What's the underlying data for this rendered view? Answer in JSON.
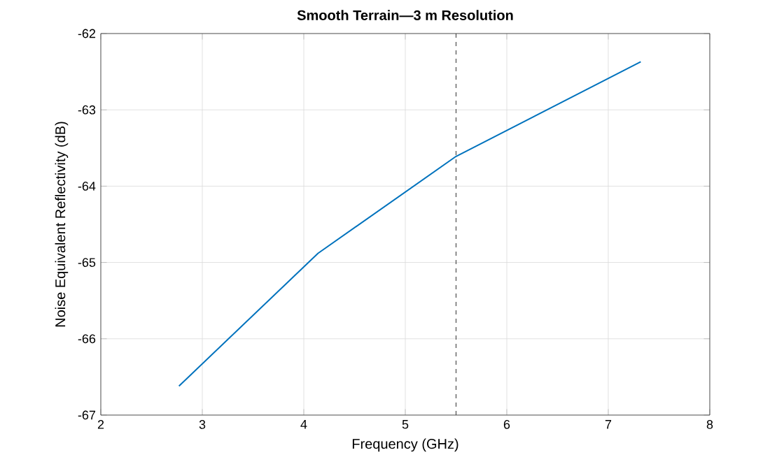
{
  "chart_data": {
    "type": "line",
    "title": "Smooth Terrain—3 m Resolution",
    "xlabel": "Frequency (GHz)",
    "ylabel": "Noise Equivalent Reflectivity (dB)",
    "x": [
      2.77,
      4.14,
      5.5,
      7.32
    ],
    "series": [
      {
        "color": "#0072bd",
        "values": [
          -66.62,
          -64.88,
          -63.61,
          -62.37
        ]
      }
    ],
    "xlim": [
      2,
      8
    ],
    "xticks": [
      2,
      3,
      4,
      5,
      6,
      7,
      8
    ],
    "ylim": [
      -67,
      -62
    ],
    "yticks": [
      -67,
      -66,
      -65,
      -64,
      -63,
      -62
    ],
    "grid": true,
    "ref_lines": [
      {
        "axis": "x",
        "value": 5.5,
        "color": "#404040",
        "line_style": "dashed"
      }
    ]
  }
}
